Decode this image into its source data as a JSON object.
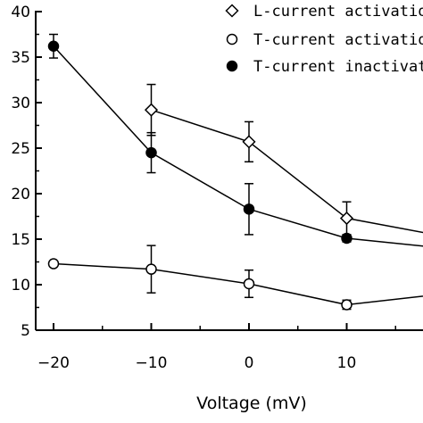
{
  "chart_data": {
    "type": "line",
    "xlabel": "Voltage (mV)",
    "ylabel": "",
    "xlim": [
      -20,
      20
    ],
    "ylim": [
      5,
      40
    ],
    "x_ticks": [
      -20,
      -10,
      0,
      10
    ],
    "x_tick_labels": [
      "-20",
      "-10",
      "0",
      "10"
    ],
    "y_ticks": [
      5,
      10,
      15,
      20,
      25,
      30,
      35,
      40
    ],
    "y_tick_labels": [
      "5",
      "10",
      "15",
      "20",
      "25",
      "30",
      "35",
      "40"
    ],
    "grid": false,
    "legend_position": "top-right",
    "series": [
      {
        "name": "L-current activation",
        "marker": "diamond-open",
        "x": [
          -10,
          0,
          10,
          20
        ],
        "y": [
          29.2,
          25.7,
          17.3,
          15.3
        ],
        "err": [
          2.8,
          2.2,
          1.8,
          0
        ]
      },
      {
        "name": "T-current activation",
        "marker": "circle-open",
        "x": [
          -20,
          -10,
          0,
          10,
          20
        ],
        "y": [
          12.3,
          11.7,
          10.1,
          7.8,
          9.0
        ],
        "err": [
          0,
          2.6,
          1.5,
          0.5,
          0
        ]
      },
      {
        "name": "T-current inactivation",
        "marker": "circle-filled",
        "x": [
          -20,
          -10,
          0,
          10,
          20
        ],
        "y": [
          36.2,
          24.5,
          18.3,
          15.1,
          14.0
        ],
        "err": [
          1.3,
          2.2,
          2.8,
          0.4,
          0
        ]
      }
    ]
  }
}
